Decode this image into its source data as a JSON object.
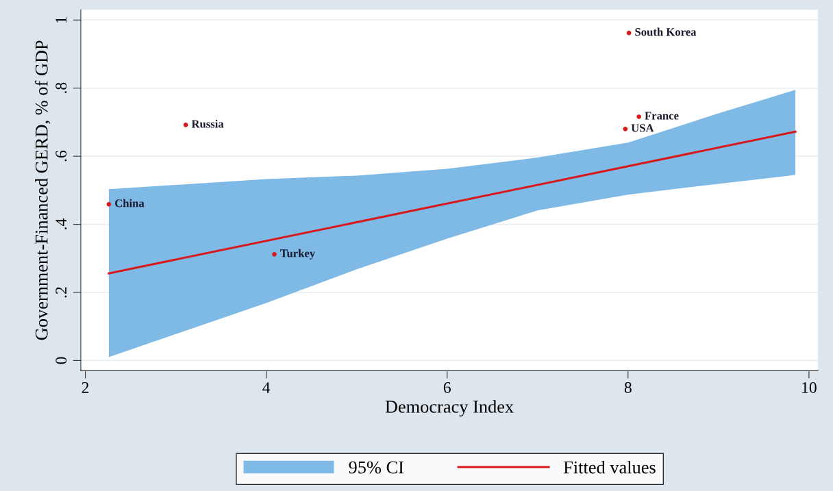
{
  "chart_data": {
    "type": "scatter",
    "xlabel": "Democracy Index",
    "ylabel": "Government-Financed GERD, % of GDP",
    "xlim": [
      1.95,
      10.1
    ],
    "xticks": [
      2,
      4,
      6,
      8,
      10
    ],
    "ylim": [
      -0.03,
      1.03
    ],
    "yticks": [
      {
        "value": 0,
        "label": "0"
      },
      {
        "value": 0.2,
        "label": ".2"
      },
      {
        "value": 0.4,
        "label": ".4"
      },
      {
        "value": 0.6,
        "label": ".6"
      },
      {
        "value": 0.8,
        "label": ".8"
      },
      {
        "value": 1,
        "label": "1"
      }
    ],
    "grid": "y",
    "legend": "bottom",
    "series": [
      {
        "name": "95% CI",
        "type": "area",
        "color": "#7fbae6",
        "x": [
          2.26,
          4,
          5,
          6,
          7,
          8,
          9,
          9.85
        ],
        "values": [
          null,
          null,
          null,
          null,
          null,
          null,
          null,
          null
        ],
        "lower": [
          0.01,
          0.169,
          0.268,
          0.358,
          0.441,
          0.487,
          0.519,
          0.545
        ],
        "upper": [
          0.503,
          0.533,
          0.543,
          0.563,
          0.596,
          0.64,
          0.726,
          0.795
        ]
      },
      {
        "name": "Fitted values",
        "type": "line",
        "color": "#d7191c",
        "x": [
          2.26,
          9.85
        ],
        "values": [
          0.256,
          0.672
        ]
      },
      {
        "type": "scatter",
        "color": "#d7191c",
        "marker": "circle",
        "x": [
          2.26,
          3.11,
          4.09,
          7.97,
          8.12,
          8.01
        ],
        "values": [
          0.459,
          0.692,
          0.312,
          0.68,
          0.716,
          0.962
        ]
      }
    ],
    "annotations": [
      {
        "text": "China",
        "x": 2.26,
        "y": 0.459
      },
      {
        "text": "Russia",
        "x": 3.11,
        "y": 0.692
      },
      {
        "text": "Turkey",
        "x": 4.09,
        "y": 0.312
      },
      {
        "text": "USA",
        "x": 7.97,
        "y": 0.68
      },
      {
        "text": "France",
        "x": 8.12,
        "y": 0.716
      },
      {
        "text": "South Korea",
        "x": 8.01,
        "y": 0.962
      }
    ]
  }
}
